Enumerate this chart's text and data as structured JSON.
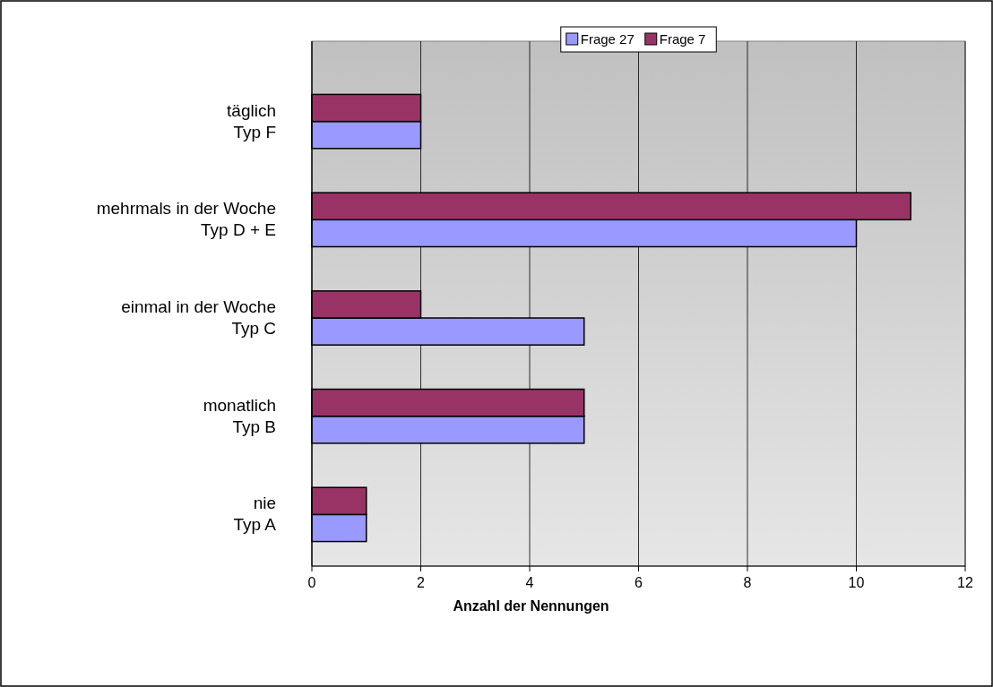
{
  "chart_data": {
    "type": "bar",
    "orientation": "horizontal",
    "xlabel": "Anzahl der Nennungen",
    "categories": [
      "täglich\nTyp F",
      "mehrmals in der Woche\nTyp D + E",
      "einmal in der Woche\nTyp C",
      "monatlich\nTyp B",
      "nie\nTyp A"
    ],
    "series": [
      {
        "name": "Frage 27",
        "color": "#9999ff",
        "values": [
          2,
          10,
          5,
          5,
          1
        ]
      },
      {
        "name": "Frage 7",
        "color": "#993366",
        "values": [
          2,
          11,
          2,
          5,
          1
        ]
      }
    ],
    "xlim": [
      0,
      12
    ],
    "xticks": [
      0,
      2,
      4,
      6,
      8,
      10,
      12
    ],
    "grid": "x",
    "legend": "top"
  }
}
